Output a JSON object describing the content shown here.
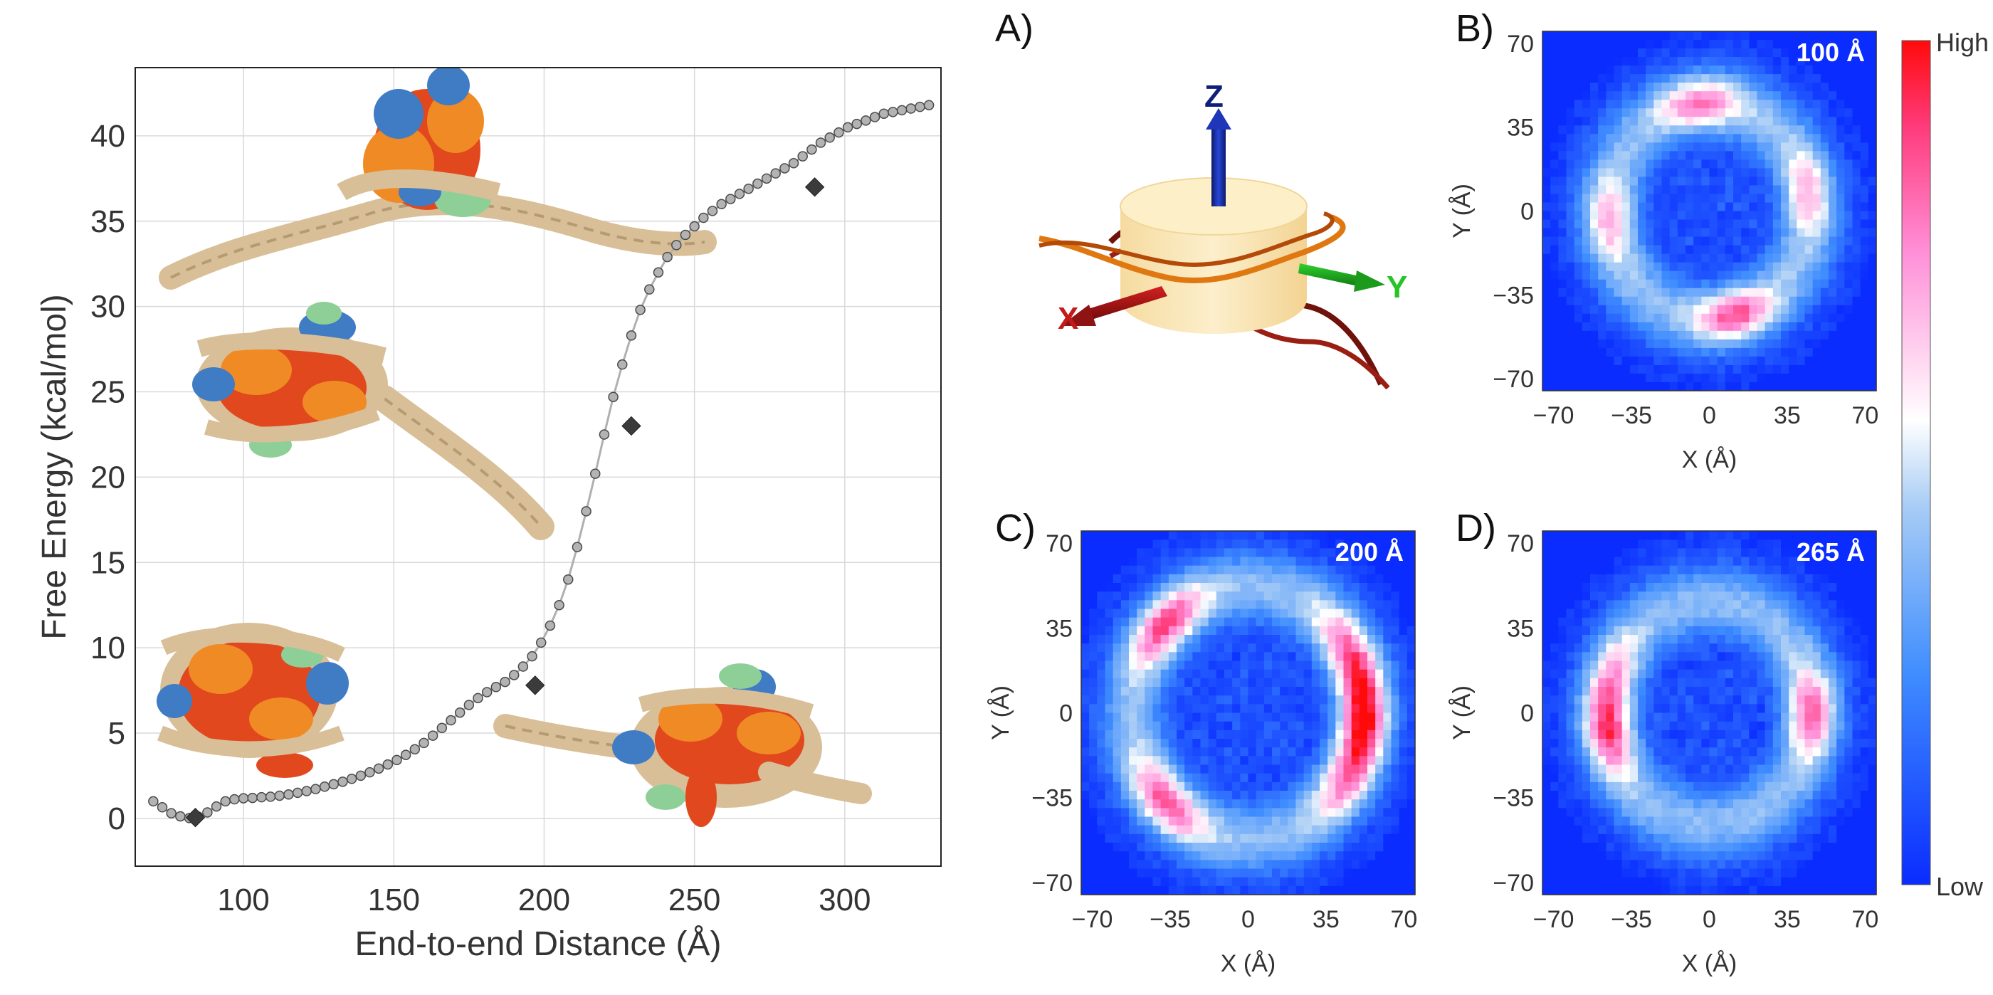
{
  "colors": {
    "curve": "#b0b0b0",
    "marker": "#b3b3b3",
    "highlight": "#3b3b3b",
    "grid": "#d9d9d9",
    "dna": "#d9bf98",
    "h3": "#e1481e",
    "h4": "#f08a24",
    "h2a": "#3f7cc4",
    "h2b": "#8ecf98",
    "heat_low": "#0a2cff",
    "heat_mid": "#ffffff",
    "heat_high": "#ff0a0a"
  },
  "frame": {
    "letter_a": "A)",
    "axis_x": "X",
    "axis_y": "Y",
    "axis_z": "Z"
  },
  "colorbar": {
    "high_label": "High",
    "low_label": "Low"
  },
  "chart_data": [
    {
      "type": "line",
      "xlabel": "End-to-end Distance (Å)",
      "ylabel": "Free Energy (kcal/mol)",
      "xlim": [
        64,
        332
      ],
      "ylim": [
        -2.8,
        44
      ],
      "xticks": [
        100,
        150,
        200,
        250,
        300
      ],
      "yticks": [
        0,
        5,
        10,
        15,
        20,
        25,
        30,
        35,
        40
      ],
      "grid": true,
      "x": [
        70,
        73,
        76,
        79,
        82,
        85,
        88,
        91,
        94,
        97,
        100,
        103,
        106,
        109,
        112,
        115,
        118,
        121,
        124,
        127,
        130,
        133,
        136,
        139,
        142,
        145,
        148,
        151,
        154,
        157,
        160,
        163,
        166,
        169,
        172,
        175,
        178,
        181,
        184,
        187,
        190,
        193,
        196,
        199,
        202,
        205,
        208,
        211,
        214,
        217,
        220,
        223,
        226,
        229,
        232,
        235,
        238,
        241,
        244,
        247,
        250,
        253,
        256,
        259,
        262,
        265,
        268,
        271,
        274,
        277,
        280,
        283,
        286,
        289,
        292,
        295,
        298,
        301,
        304,
        307,
        310,
        313,
        316,
        319,
        322,
        325,
        328
      ],
      "y": [
        1.0,
        0.65,
        0.3,
        0.12,
        0.02,
        0.1,
        0.35,
        0.7,
        1.0,
        1.12,
        1.18,
        1.2,
        1.24,
        1.27,
        1.33,
        1.4,
        1.5,
        1.6,
        1.72,
        1.86,
        2.0,
        2.15,
        2.32,
        2.5,
        2.7,
        2.92,
        3.16,
        3.42,
        3.72,
        4.05,
        4.42,
        4.85,
        5.3,
        5.75,
        6.2,
        6.65,
        7.05,
        7.4,
        7.7,
        8.0,
        8.4,
        8.9,
        9.5,
        10.3,
        11.3,
        12.5,
        14.0,
        15.9,
        18.0,
        20.2,
        22.5,
        24.7,
        26.6,
        28.3,
        29.8,
        31.0,
        32.0,
        32.9,
        33.6,
        34.2,
        34.7,
        35.2,
        35.6,
        36.0,
        36.3,
        36.6,
        36.9,
        37.2,
        37.5,
        37.8,
        38.1,
        38.4,
        38.8,
        39.2,
        39.6,
        39.9,
        40.2,
        40.5,
        40.7,
        40.9,
        41.1,
        41.3,
        41.4,
        41.5,
        41.6,
        41.7,
        41.8
      ],
      "highlighted_points": [
        {
          "x": 84,
          "y": 0.05
        },
        {
          "x": 197,
          "y": 7.8
        },
        {
          "x": 229,
          "y": 23.0
        },
        {
          "x": 290,
          "y": 37.0
        }
      ]
    },
    {
      "type": "heatmap",
      "panel": "B)",
      "label": "100 Å",
      "xlabel": "X (Å)",
      "ylabel": "Y (Å)",
      "xlim": [
        -75,
        75
      ],
      "ylim": [
        -75,
        75
      ],
      "ticks": [
        -70,
        -35,
        0,
        35,
        70
      ],
      "ring_radius": 45,
      "hotspots": [
        {
          "angle_deg": 95,
          "intensity": 0.75
        },
        {
          "angle_deg": 10,
          "intensity": 0.55
        },
        {
          "angle_deg": -75,
          "intensity": 0.85
        },
        {
          "angle_deg": 185,
          "intensity": 0.55
        }
      ]
    },
    {
      "type": "heatmap",
      "panel": "C)",
      "label": "200 Å",
      "xlabel": "X (Å)",
      "ylabel": "Y (Å)",
      "xlim": [
        -75,
        75
      ],
      "ylim": [
        -75,
        75
      ],
      "ticks": [
        -70,
        -35,
        0,
        35,
        70
      ],
      "ring_radius": 52,
      "hotspots": [
        {
          "angle_deg": 135,
          "intensity": 0.9
        },
        {
          "angle_deg": 225,
          "intensity": 0.85
        },
        {
          "angle_deg": 0,
          "intensity": 1.0
        },
        {
          "angle_deg": 30,
          "intensity": 0.7
        },
        {
          "angle_deg": -30,
          "intensity": 0.7
        }
      ]
    },
    {
      "type": "heatmap",
      "panel": "D)",
      "label": "265 Å",
      "xlabel": "X (Å)",
      "ylabel": "Y (Å)",
      "xlim": [
        -75,
        75
      ],
      "ylim": [
        -75,
        75
      ],
      "ticks": [
        -70,
        -35,
        0,
        35,
        70
      ],
      "ring_radius": 46,
      "hotspots": [
        {
          "angle_deg": 190,
          "intensity": 0.9
        },
        {
          "angle_deg": 0,
          "intensity": 0.8
        },
        {
          "angle_deg": 160,
          "intensity": 0.5
        }
      ]
    }
  ]
}
